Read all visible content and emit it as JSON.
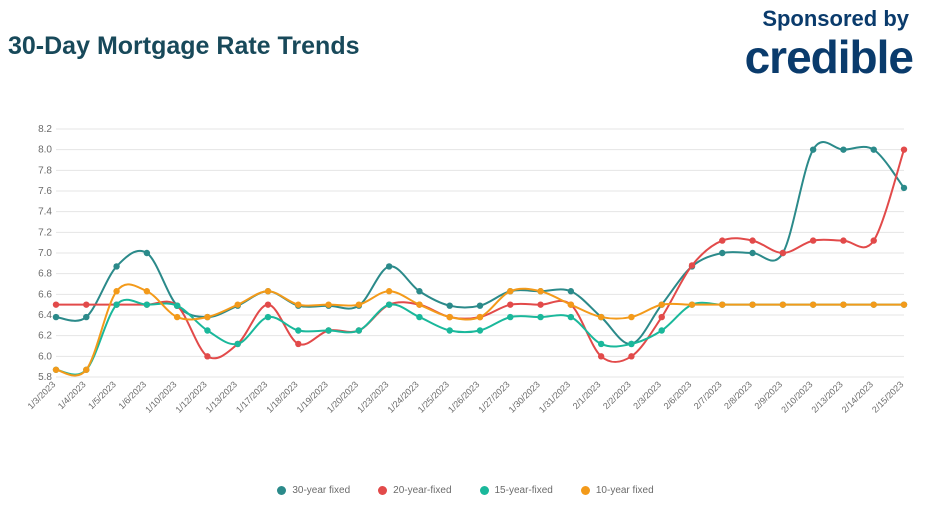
{
  "title": "30-Day Mortgage Rate Trends",
  "sponsor_label": "Sponsored by",
  "sponsor_logo": "credible",
  "chart": {
    "type": "line",
    "background_color": "#ffffff",
    "grid_color": "#e4e4e4",
    "axis_text_color": "#6b6b6b",
    "title_color": "#18495a",
    "title_fontsize": 25,
    "title_fontweight": 700,
    "tick_fontsize": 10,
    "x_labels": [
      "1/3/2023",
      "1/4/2023",
      "1/5/2023",
      "1/6/2023",
      "1/10/2023",
      "1/12/2023",
      "1/13/2023",
      "1/17/2023",
      "1/18/2023",
      "1/19/2023",
      "1/20/2023",
      "1/23/2023",
      "1/24/2023",
      "1/25/2023",
      "1/26/2023",
      "1/27/2023",
      "1/30/2023",
      "1/31/2023",
      "2/1/2023",
      "2/2/2023",
      "2/3/2023",
      "2/6/2023",
      "2/7/2023",
      "2/8/2023",
      "2/9/2023",
      "2/10/2023",
      "2/13/2023",
      "2/14/2023",
      "2/15/2023"
    ],
    "ylim": [
      5.8,
      8.2
    ],
    "ytick_step": 0.2,
    "line_width": 2,
    "marker_radius": 3.2,
    "series": [
      {
        "name": "30-year fixed",
        "color": "#2b8a8a",
        "values": [
          6.38,
          6.38,
          6.87,
          7.0,
          6.49,
          6.38,
          6.49,
          6.63,
          6.49,
          6.49,
          6.49,
          6.87,
          6.63,
          6.49,
          6.49,
          6.63,
          6.63,
          6.63,
          6.38,
          6.12,
          6.5,
          6.87,
          7.0,
          7.0,
          7.0,
          8.0,
          8.0,
          8.0,
          7.63
        ]
      },
      {
        "name": "20-year-fixed",
        "color": "#e24a4a",
        "values": [
          6.5,
          6.5,
          6.5,
          6.5,
          6.49,
          6.0,
          6.12,
          6.5,
          6.12,
          6.25,
          6.25,
          6.5,
          6.5,
          6.38,
          6.38,
          6.5,
          6.5,
          6.5,
          6.0,
          6.0,
          6.38,
          6.88,
          7.12,
          7.12,
          7.0,
          7.12,
          7.12,
          7.12,
          8.0
        ]
      },
      {
        "name": "15-year-fixed",
        "color": "#1ab89b",
        "values": [
          5.87,
          5.87,
          6.5,
          6.5,
          6.49,
          6.25,
          6.12,
          6.38,
          6.25,
          6.25,
          6.25,
          6.5,
          6.38,
          6.25,
          6.25,
          6.38,
          6.38,
          6.38,
          6.12,
          6.12,
          6.25,
          6.5,
          6.5,
          6.5,
          6.5,
          6.5,
          6.5,
          6.5,
          6.5
        ]
      },
      {
        "name": "10-year fixed",
        "color": "#f39a1a",
        "values": [
          5.87,
          5.87,
          6.63,
          6.63,
          6.38,
          6.38,
          6.5,
          6.63,
          6.5,
          6.5,
          6.5,
          6.63,
          6.5,
          6.38,
          6.38,
          6.63,
          6.63,
          6.5,
          6.38,
          6.38,
          6.5,
          6.5,
          6.5,
          6.5,
          6.5,
          6.5,
          6.5,
          6.5,
          6.5
        ]
      }
    ],
    "legend_position": "bottom-center"
  }
}
